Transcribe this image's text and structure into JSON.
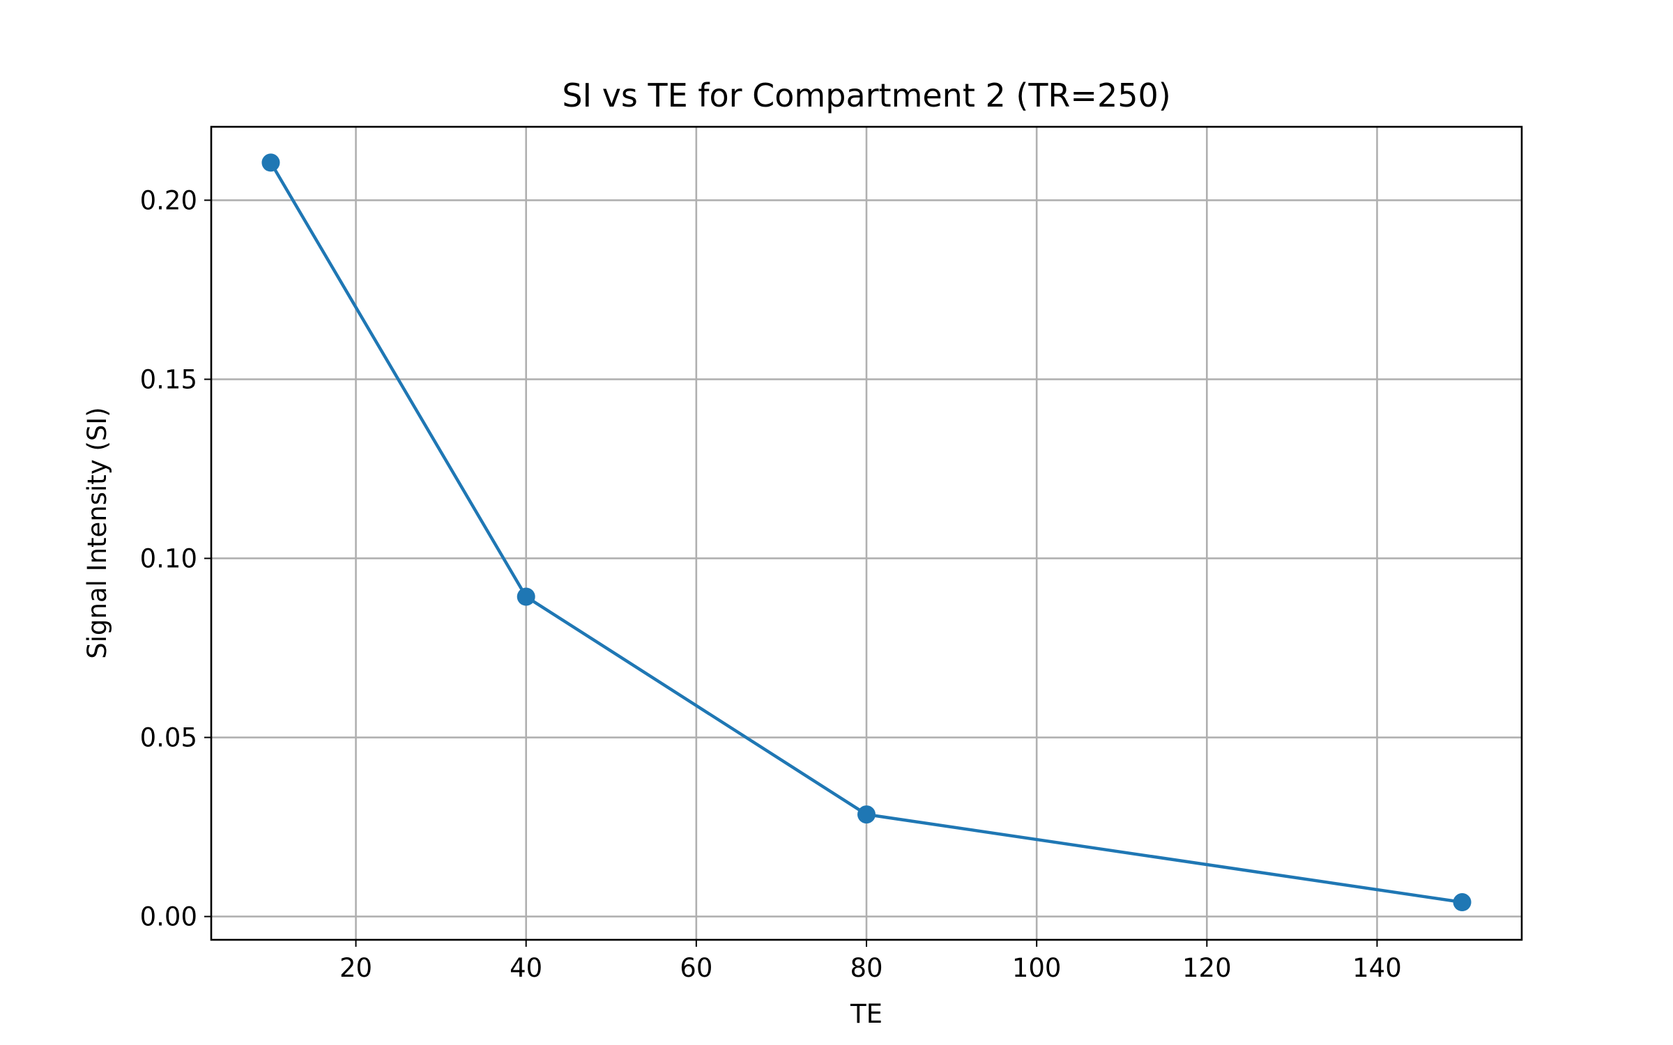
{
  "chart_data": {
    "type": "line",
    "title": "SI vs TE for Compartment 2 (TR=250)",
    "xlabel": "TE",
    "ylabel": "Signal Intensity (SI)",
    "xlim": [
      3,
      157
    ],
    "ylim": [
      -0.0065,
      0.2205
    ],
    "xticks": [
      20,
      40,
      60,
      80,
      100,
      120,
      140
    ],
    "xtick_labels": [
      "20",
      "40",
      "60",
      "80",
      "100",
      "120",
      "140"
    ],
    "yticks": [
      0.0,
      0.05,
      0.1,
      0.15,
      0.2
    ],
    "ytick_labels": [
      "0.00",
      "0.05",
      "0.10",
      "0.15",
      "0.20"
    ],
    "grid": true,
    "series": [
      {
        "x": [
          10,
          40,
          80,
          150
        ],
        "y": [
          0.2105,
          0.0893,
          0.0285,
          0.004
        ],
        "color": "#1f77b4",
        "marker": "circle"
      }
    ]
  }
}
